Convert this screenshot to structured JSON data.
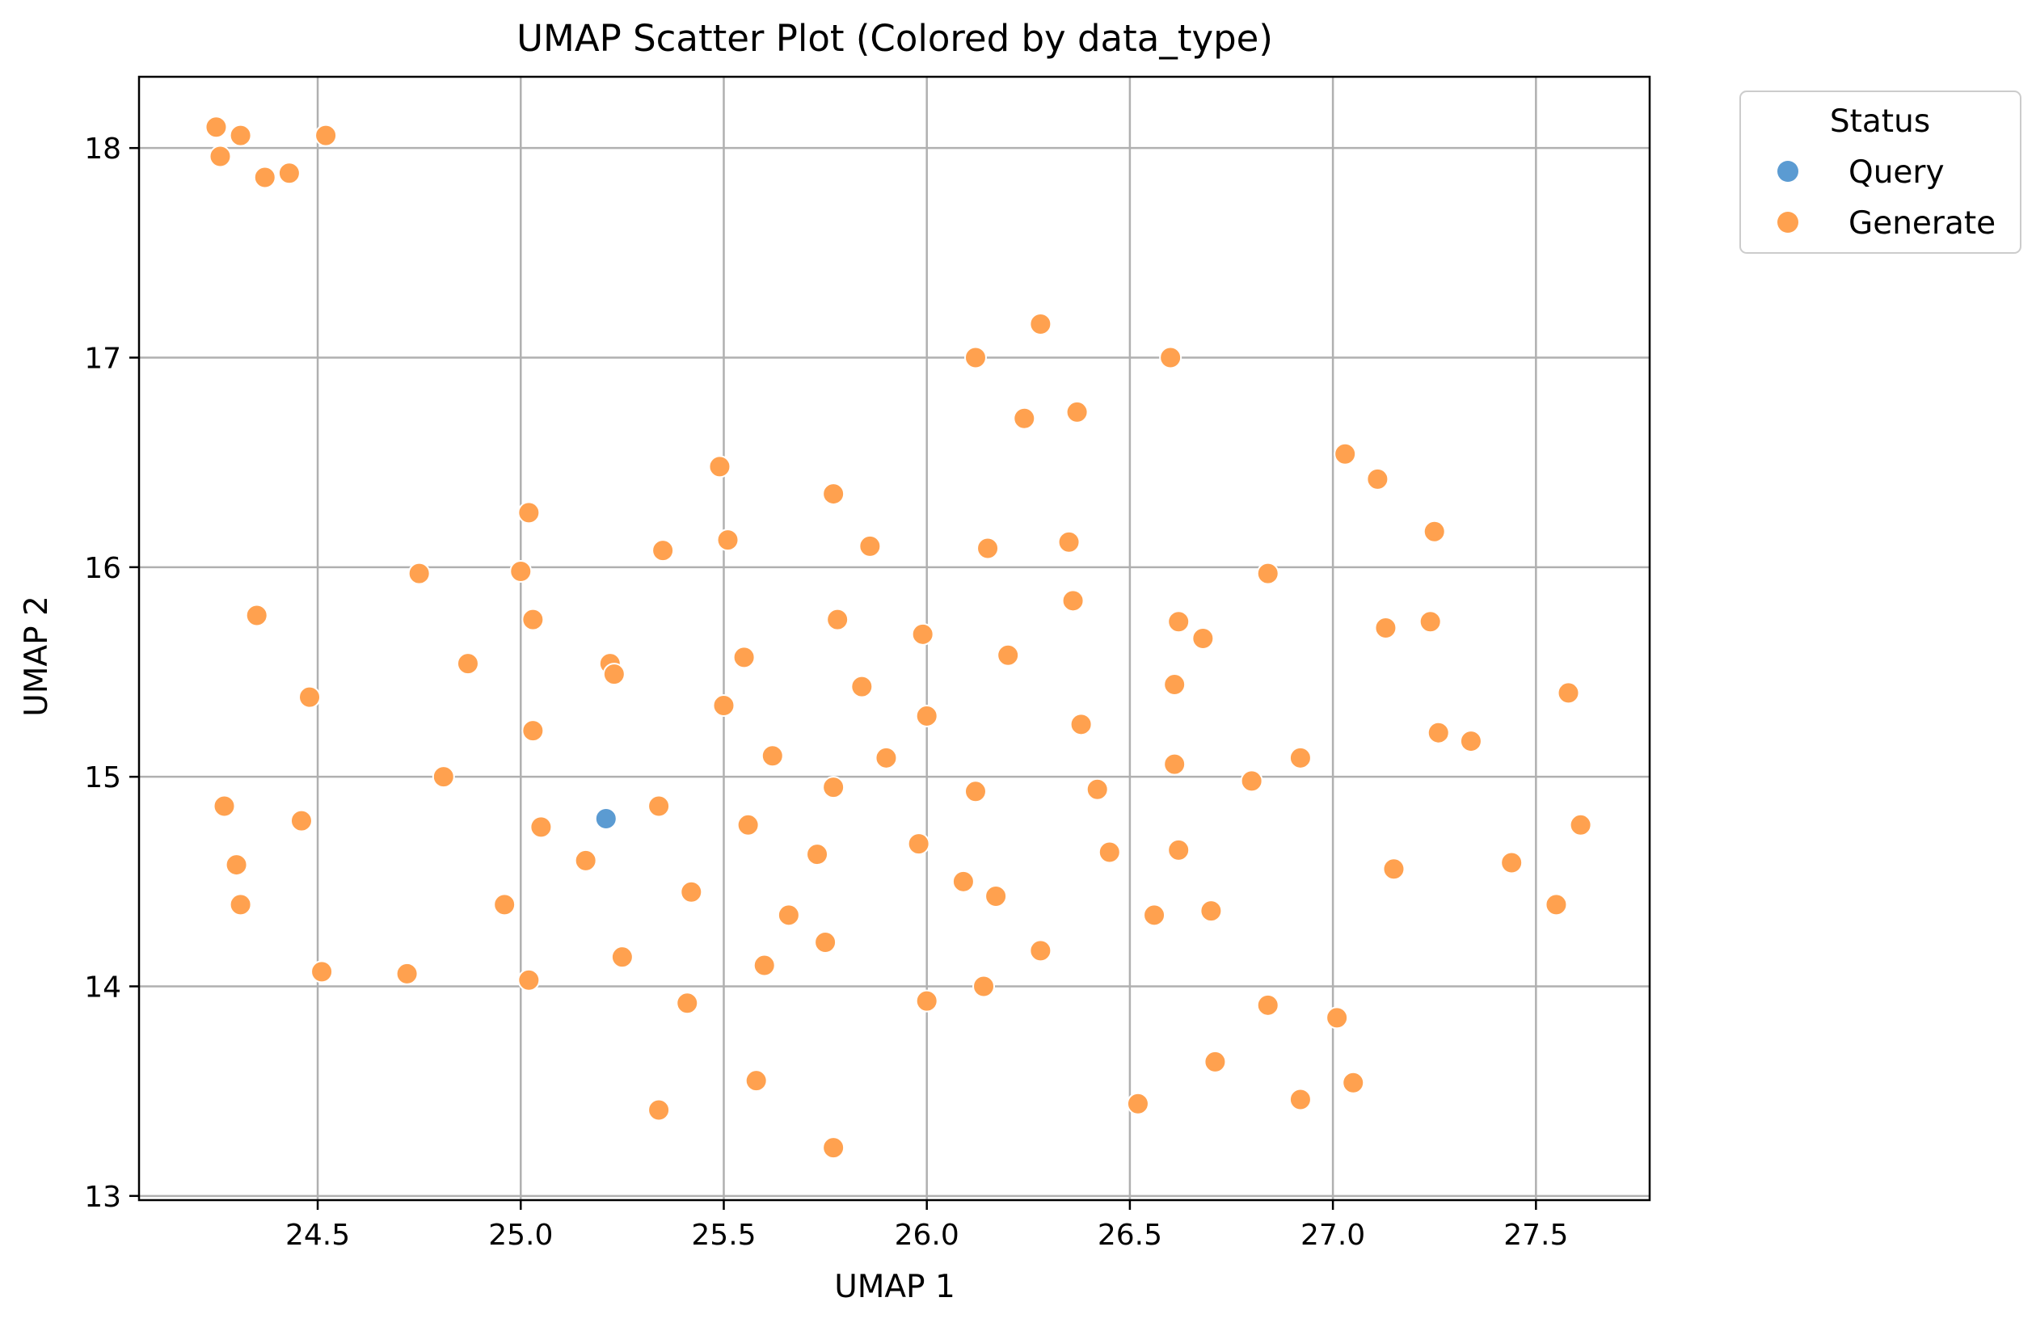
{
  "chart_data": {
    "type": "scatter",
    "title": "UMAP Scatter Plot (Colored by data_type)",
    "xlabel": "UMAP 1",
    "ylabel": "UMAP 2",
    "xlim": [
      24.06,
      27.78
    ],
    "ylim": [
      12.98,
      18.34
    ],
    "xticks": [
      24.5,
      25.0,
      25.5,
      26.0,
      26.5,
      27.0,
      27.5
    ],
    "xtick_labels": [
      "24.5",
      "25.0",
      "25.5",
      "26.0",
      "26.5",
      "27.0",
      "27.5"
    ],
    "yticks": [
      13,
      14,
      15,
      16,
      17,
      18
    ],
    "ytick_labels": [
      "13",
      "14",
      "15",
      "16",
      "17",
      "18"
    ],
    "grid": true,
    "legend": {
      "title": "Status",
      "placement": "outside-top-right"
    },
    "series": [
      {
        "name": "Query",
        "color": "#5b9bd2",
        "points": [
          [
            25.21,
            14.8
          ]
        ]
      },
      {
        "name": "Generate",
        "color": "#ffa14f",
        "points": [
          [
            24.25,
            18.1
          ],
          [
            24.26,
            17.96
          ],
          [
            24.31,
            18.06
          ],
          [
            24.37,
            17.86
          ],
          [
            24.43,
            17.88
          ],
          [
            24.52,
            18.06
          ],
          [
            24.35,
            15.77
          ],
          [
            24.48,
            15.38
          ],
          [
            24.27,
            14.86
          ],
          [
            24.3,
            14.58
          ],
          [
            24.31,
            14.39
          ],
          [
            24.46,
            14.79
          ],
          [
            24.51,
            14.07
          ],
          [
            24.72,
            14.06
          ],
          [
            24.75,
            15.97
          ],
          [
            24.81,
            15.0
          ],
          [
            24.87,
            15.54
          ],
          [
            24.96,
            14.39
          ],
          [
            25.0,
            15.98
          ],
          [
            25.02,
            16.26
          ],
          [
            25.03,
            15.75
          ],
          [
            25.03,
            15.22
          ],
          [
            25.02,
            14.03
          ],
          [
            25.05,
            14.76
          ],
          [
            25.16,
            14.6
          ],
          [
            25.22,
            15.54
          ],
          [
            25.23,
            15.49
          ],
          [
            25.25,
            14.14
          ],
          [
            25.34,
            14.86
          ],
          [
            25.35,
            16.08
          ],
          [
            25.34,
            13.41
          ],
          [
            25.41,
            13.92
          ],
          [
            25.42,
            14.45
          ],
          [
            25.49,
            16.48
          ],
          [
            25.5,
            15.34
          ],
          [
            25.51,
            16.13
          ],
          [
            25.55,
            15.57
          ],
          [
            25.56,
            14.77
          ],
          [
            25.58,
            13.55
          ],
          [
            25.6,
            14.1
          ],
          [
            25.62,
            15.1
          ],
          [
            25.66,
            14.34
          ],
          [
            25.73,
            14.63
          ],
          [
            25.75,
            14.21
          ],
          [
            25.77,
            16.35
          ],
          [
            25.77,
            14.95
          ],
          [
            25.78,
            15.75
          ],
          [
            25.77,
            13.23
          ],
          [
            25.84,
            15.43
          ],
          [
            25.86,
            16.1
          ],
          [
            25.9,
            15.09
          ],
          [
            25.98,
            14.68
          ],
          [
            25.99,
            15.68
          ],
          [
            26.0,
            15.29
          ],
          [
            26.0,
            13.93
          ],
          [
            26.09,
            14.5
          ],
          [
            26.12,
            14.93
          ],
          [
            26.12,
            17.0
          ],
          [
            26.14,
            14.0
          ],
          [
            26.15,
            16.09
          ],
          [
            26.17,
            14.43
          ],
          [
            26.2,
            15.58
          ],
          [
            26.24,
            16.71
          ],
          [
            26.28,
            17.16
          ],
          [
            26.28,
            14.17
          ],
          [
            26.35,
            16.12
          ],
          [
            26.36,
            15.84
          ],
          [
            26.37,
            16.74
          ],
          [
            26.38,
            15.25
          ],
          [
            26.42,
            14.94
          ],
          [
            26.45,
            14.64
          ],
          [
            26.52,
            13.44
          ],
          [
            26.56,
            14.34
          ],
          [
            26.6,
            17.0
          ],
          [
            26.61,
            15.44
          ],
          [
            26.61,
            15.06
          ],
          [
            26.62,
            15.74
          ],
          [
            26.62,
            14.65
          ],
          [
            26.68,
            15.66
          ],
          [
            26.7,
            14.36
          ],
          [
            26.71,
            13.64
          ],
          [
            26.8,
            14.98
          ],
          [
            26.84,
            15.97
          ],
          [
            26.84,
            13.91
          ],
          [
            26.92,
            15.09
          ],
          [
            26.92,
            13.46
          ],
          [
            27.01,
            13.85
          ],
          [
            27.03,
            16.54
          ],
          [
            27.05,
            13.54
          ],
          [
            27.11,
            16.42
          ],
          [
            27.13,
            15.71
          ],
          [
            27.15,
            14.56
          ],
          [
            27.24,
            15.74
          ],
          [
            27.25,
            16.17
          ],
          [
            27.26,
            15.21
          ],
          [
            27.34,
            15.17
          ],
          [
            27.44,
            14.59
          ],
          [
            27.55,
            14.39
          ],
          [
            27.58,
            15.4
          ],
          [
            27.61,
            14.77
          ]
        ]
      }
    ]
  }
}
